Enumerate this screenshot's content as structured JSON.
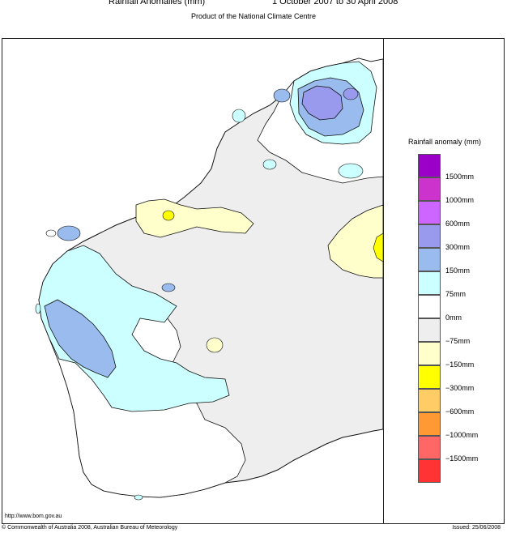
{
  "header": {
    "title": "Rainfall Anomalies (mm)",
    "date_range": "1 October 2007 to 30 April 2008",
    "subtitle": "Product of the National Climate Centre"
  },
  "legend": {
    "title": "Rainfall anomaly (mm)",
    "items": [
      {
        "color": "#9a00c8",
        "label": "1500mm"
      },
      {
        "color": "#cc33cc",
        "label": "1000mm"
      },
      {
        "color": "#cc66ff",
        "label": "600mm"
      },
      {
        "color": "#9999ee",
        "label": "300mm"
      },
      {
        "color": "#99bbee",
        "label": "150mm"
      },
      {
        "color": "#ccffff",
        "label": "75mm"
      },
      {
        "color": "#ffffff",
        "label": "0mm"
      },
      {
        "color": "#eeeeee",
        "label": "−75mm"
      },
      {
        "color": "#ffffcc",
        "label": "−150mm"
      },
      {
        "color": "#ffff00",
        "label": "−300mm"
      },
      {
        "color": "#ffcc66",
        "label": "−600mm"
      },
      {
        "color": "#ff9933",
        "label": "−1000mm"
      },
      {
        "color": "#ff6666",
        "label": "−1500mm"
      },
      {
        "color": "#ff3333",
        "label": ""
      }
    ]
  },
  "map_colors": {
    "land_base": "#eeeeee",
    "outline": "#111111"
  },
  "footer": {
    "url": "http://www.bom.gov.au",
    "copyright": "© Commonwealth of Australia 2008, Australian Bureau of Meteorology",
    "issued": "Issued: 25/06/2008"
  }
}
